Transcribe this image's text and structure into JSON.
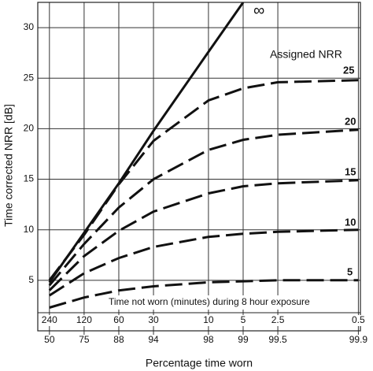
{
  "chart_data": {
    "type": "line",
    "y_label": "Time corrected NRR [dB]",
    "x_label": "Percentage time worn",
    "annotation": "Time not worn (minutes) during 8 hour exposure",
    "legend_title": "Assigned NRR",
    "log_x": true,
    "x": [
      240,
      120,
      60,
      30,
      10,
      5,
      2.5,
      0.5
    ],
    "xlim": [
      303,
      0.48
    ],
    "xticks": [
      240,
      120,
      60,
      30,
      10,
      5,
      2.5,
      0.5
    ],
    "x2ticks": [
      {
        "value": 240,
        "label": "50"
      },
      {
        "value": 120,
        "label": "75"
      },
      {
        "value": 60,
        "label": "88"
      },
      {
        "value": 30,
        "label": "94"
      },
      {
        "value": 10,
        "label": "98"
      },
      {
        "value": 5,
        "label": "99"
      },
      {
        "value": 2.5,
        "label": "99.5"
      },
      {
        "value": 0.5,
        "label": "99.9"
      }
    ],
    "ylim": [
      0,
      32.5
    ],
    "yticks": [
      5,
      10,
      15,
      20,
      25,
      30
    ],
    "grid": true,
    "series": [
      {
        "name": "∞",
        "color": "#111111",
        "style": "solid",
        "values": [
          4.8,
          9.7,
          14.6,
          19.8,
          27.6,
          32.5,
          null,
          null
        ]
      },
      {
        "name": "25",
        "color": "#111111",
        "style": "dashed",
        "values": [
          5.0,
          9.5,
          14.5,
          18.8,
          22.8,
          24.0,
          24.6,
          24.8
        ]
      },
      {
        "name": "20",
        "color": "#111111",
        "style": "dashed",
        "values": [
          4.5,
          8.6,
          12.2,
          15.0,
          17.9,
          18.9,
          19.4,
          19.9
        ]
      },
      {
        "name": "15",
        "color": "#111111",
        "style": "dashed",
        "values": [
          4.0,
          7.4,
          9.9,
          11.8,
          13.6,
          14.3,
          14.6,
          14.9
        ]
      },
      {
        "name": "10",
        "color": "#111111",
        "style": "dashed",
        "values": [
          3.5,
          5.7,
          7.2,
          8.3,
          9.3,
          9.6,
          9.8,
          10.0
        ]
      },
      {
        "name": "5",
        "color": "#111111",
        "style": "dashed",
        "values": [
          2.3,
          3.3,
          4.0,
          4.4,
          4.8,
          4.9,
          5.0,
          5.0
        ]
      }
    ]
  }
}
